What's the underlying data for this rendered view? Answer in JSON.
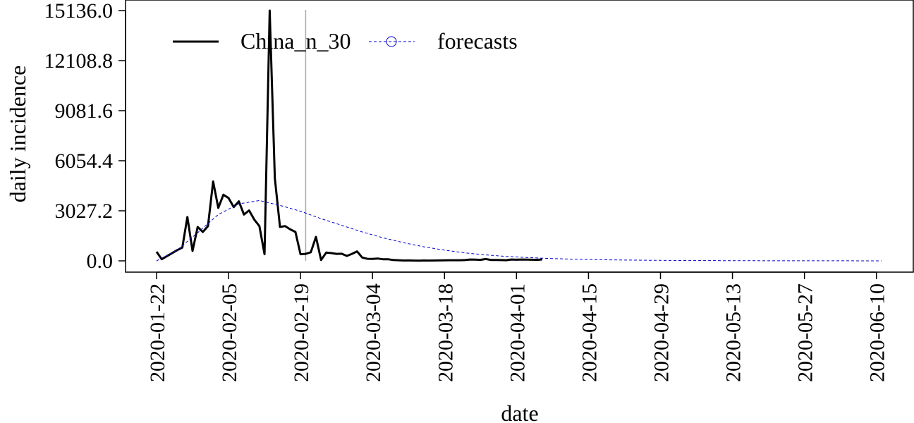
{
  "chart_data": {
    "type": "line",
    "xlabel": "date",
    "ylabel": "daily incidence",
    "ylim": [
      0.0,
      15136.0
    ],
    "xlim": [
      "2020-01-22",
      "2020-06-11"
    ],
    "yticks": [
      "0.0",
      "3027.2",
      "6054.4",
      "9081.6",
      "12108.8",
      "15136.0"
    ],
    "xticks": [
      "2020-01-22",
      "2020-02-05",
      "2020-02-19",
      "2020-03-04",
      "2020-03-18",
      "2020-04-01",
      "2020-04-15",
      "2020-04-29",
      "2020-05-13",
      "2020-05-27",
      "2020-06-10"
    ],
    "vline_date": "2020-02-20",
    "legend_position": "top-left",
    "grid": false,
    "colors": {
      "observed": "#000000",
      "forecast": "#0000cc",
      "vline": "#aaaaaa"
    },
    "series": [
      {
        "name": "China_n_30",
        "style": "solid",
        "points": [
          [
            "2020-01-22",
            550
          ],
          [
            "2020-01-23",
            100
          ],
          [
            "2020-01-26",
            650
          ],
          [
            "2020-01-27",
            800
          ],
          [
            "2020-01-28",
            2650
          ],
          [
            "2020-01-29",
            600
          ],
          [
            "2020-01-30",
            2050
          ],
          [
            "2020-01-31",
            1750
          ],
          [
            "2020-02-01",
            2100
          ],
          [
            "2020-02-02",
            4800
          ],
          [
            "2020-02-03",
            3200
          ],
          [
            "2020-02-04",
            4000
          ],
          [
            "2020-02-05",
            3800
          ],
          [
            "2020-02-06",
            3250
          ],
          [
            "2020-02-07",
            3600
          ],
          [
            "2020-02-08",
            2800
          ],
          [
            "2020-02-09",
            3050
          ],
          [
            "2020-02-10",
            2500
          ],
          [
            "2020-02-11",
            2100
          ],
          [
            "2020-02-12",
            400
          ],
          [
            "2020-02-13",
            15136
          ],
          [
            "2020-02-14",
            5000
          ],
          [
            "2020-02-15",
            2050
          ],
          [
            "2020-02-16",
            2100
          ],
          [
            "2020-02-17",
            1900
          ],
          [
            "2020-02-18",
            1750
          ],
          [
            "2020-02-19",
            400
          ],
          [
            "2020-02-20",
            420
          ],
          [
            "2020-02-21",
            520
          ],
          [
            "2020-02-22",
            1450
          ],
          [
            "2020-02-23",
            50
          ],
          [
            "2020-02-24",
            500
          ],
          [
            "2020-02-25",
            470
          ],
          [
            "2020-02-26",
            420
          ],
          [
            "2020-02-27",
            430
          ],
          [
            "2020-02-28",
            300
          ],
          [
            "2020-02-29",
            420
          ],
          [
            "2020-03-01",
            570
          ],
          [
            "2020-03-02",
            200
          ],
          [
            "2020-03-03",
            125
          ],
          [
            "2020-03-04",
            120
          ],
          [
            "2020-03-05",
            140
          ],
          [
            "2020-03-06",
            100
          ],
          [
            "2020-03-07",
            100
          ],
          [
            "2020-03-08",
            50
          ],
          [
            "2020-03-09",
            40
          ],
          [
            "2020-03-10",
            20
          ],
          [
            "2020-03-11",
            25
          ],
          [
            "2020-03-12",
            15
          ],
          [
            "2020-03-13",
            10
          ],
          [
            "2020-03-14",
            20
          ],
          [
            "2020-03-15",
            15
          ],
          [
            "2020-03-16",
            20
          ],
          [
            "2020-03-17",
            25
          ],
          [
            "2020-03-18",
            30
          ],
          [
            "2020-03-19",
            40
          ],
          [
            "2020-03-20",
            40
          ],
          [
            "2020-03-21",
            40
          ],
          [
            "2020-03-22",
            45
          ],
          [
            "2020-03-23",
            80
          ],
          [
            "2020-03-24",
            75
          ],
          [
            "2020-03-25",
            60
          ],
          [
            "2020-03-26",
            110
          ],
          [
            "2020-03-27",
            55
          ],
          [
            "2020-03-28",
            50
          ],
          [
            "2020-03-29",
            45
          ],
          [
            "2020-03-30",
            40
          ],
          [
            "2020-03-31",
            80
          ],
          [
            "2020-04-01",
            70
          ],
          [
            "2020-04-02",
            80
          ],
          [
            "2020-04-03",
            75
          ],
          [
            "2020-04-04",
            70
          ],
          [
            "2020-04-05",
            60
          ],
          [
            "2020-04-06",
            85
          ]
        ]
      },
      {
        "name": "forecasts",
        "style": "dashed",
        "marker": "circle",
        "points": [
          [
            "2020-01-22",
            0
          ],
          [
            "2020-01-26",
            650
          ],
          [
            "2020-01-30",
            1700
          ],
          [
            "2020-02-03",
            2800
          ],
          [
            "2020-02-07",
            3450
          ],
          [
            "2020-02-11",
            3650
          ],
          [
            "2020-02-15",
            3350
          ],
          [
            "2020-02-19",
            3000
          ],
          [
            "2020-02-23",
            2550
          ],
          [
            "2020-02-27",
            2150
          ],
          [
            "2020-03-02",
            1750
          ],
          [
            "2020-03-06",
            1400
          ],
          [
            "2020-03-10",
            1100
          ],
          [
            "2020-03-14",
            850
          ],
          [
            "2020-03-18",
            650
          ],
          [
            "2020-03-22",
            480
          ],
          [
            "2020-03-26",
            360
          ],
          [
            "2020-03-30",
            270
          ],
          [
            "2020-04-03",
            200
          ],
          [
            "2020-04-07",
            150
          ],
          [
            "2020-04-11",
            110
          ],
          [
            "2020-04-15",
            80
          ],
          [
            "2020-04-19",
            60
          ],
          [
            "2020-04-23",
            45
          ],
          [
            "2020-04-27",
            32
          ],
          [
            "2020-05-01",
            24
          ],
          [
            "2020-05-05",
            17
          ],
          [
            "2020-05-11",
            12
          ],
          [
            "2020-05-17",
            8
          ],
          [
            "2020-05-25",
            5
          ],
          [
            "2020-06-02",
            3
          ],
          [
            "2020-06-11",
            2
          ]
        ]
      }
    ]
  }
}
